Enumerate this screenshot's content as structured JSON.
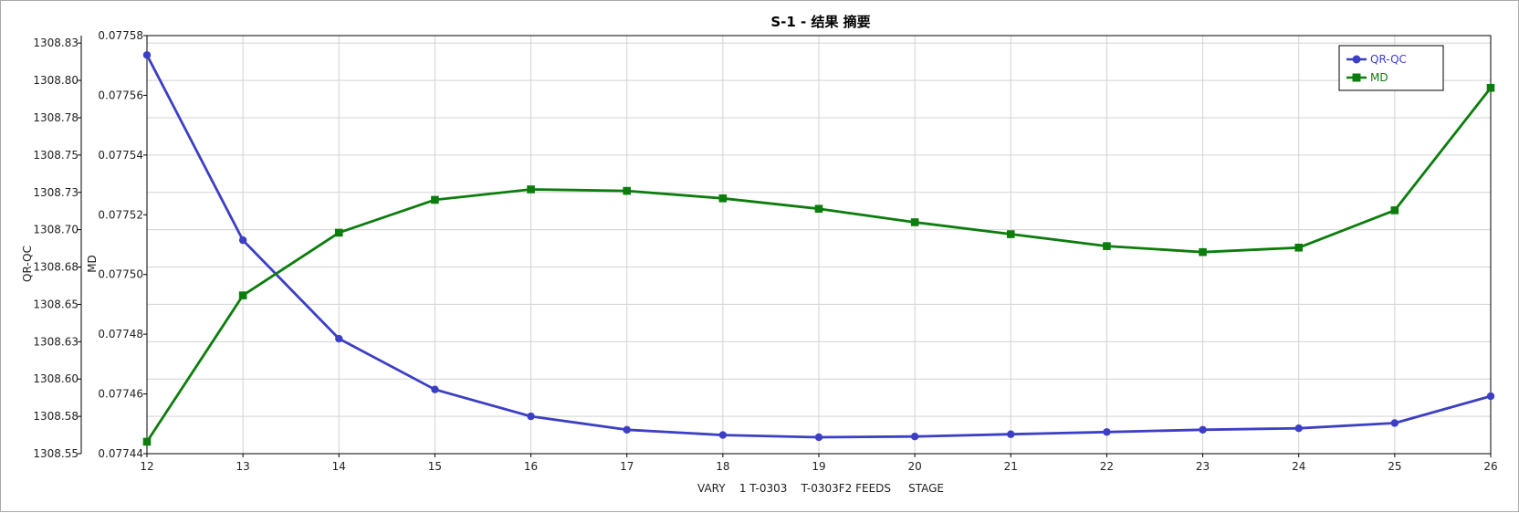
{
  "chart_data": {
    "type": "line",
    "title": "S-1 - 结果 摘要",
    "xlabel": "VARY    1 T-0303    T-0303F2 FEEDS     STAGE",
    "x": [
      12,
      13,
      14,
      15,
      16,
      17,
      18,
      19,
      20,
      21,
      22,
      23,
      24,
      25,
      26
    ],
    "xlim": [
      12,
      26
    ],
    "axes": [
      {
        "name": "left-outer",
        "ylabel": "QR-QC",
        "ylim": [
          1308.55,
          1308.83
        ],
        "tick_values": [
          1308.55,
          1308.575,
          1308.6,
          1308.625,
          1308.65,
          1308.675,
          1308.7,
          1308.725,
          1308.75,
          1308.775,
          1308.8,
          1308.825
        ],
        "tick_labels": [
          "1308.55",
          "1308.58",
          "1308.60",
          "1308.63",
          "1308.65",
          "1308.68",
          "1308.70",
          "1308.73",
          "1308.75",
          "1308.78",
          "1308.80",
          "1308.83"
        ]
      },
      {
        "name": "left-inner",
        "ylabel": "MD",
        "ylim": [
          0.07744,
          0.07758
        ],
        "tick_values": [
          0.07744,
          0.07746,
          0.07748,
          0.0775,
          0.07752,
          0.07754,
          0.07756,
          0.07758
        ],
        "tick_labels": [
          "0.07744",
          "0.07746",
          "0.07748",
          "0.07750",
          "0.07752",
          "0.07754",
          "0.07756",
          "0.07758"
        ]
      }
    ],
    "series": [
      {
        "name": "QR-QC",
        "axis": 0,
        "marker": "circle",
        "color": "#3c3fc4",
        "values": [
          1308.817,
          1308.693,
          1308.627,
          1308.593,
          1308.575,
          1308.566,
          1308.5625,
          1308.561,
          1308.5615,
          1308.563,
          1308.5645,
          1308.566,
          1308.567,
          1308.5705,
          1308.5885
        ]
      },
      {
        "name": "MD",
        "axis": 1,
        "marker": "square",
        "color": "#0c7d0c",
        "values": [
          0.077444,
          0.077493,
          0.077514,
          0.077525,
          0.0775285,
          0.077528,
          0.0775255,
          0.077522,
          0.0775175,
          0.0775135,
          0.0775095,
          0.0775075,
          0.077509,
          0.0775215,
          0.0775625
        ]
      }
    ],
    "grid": true,
    "legend_position": "top-right"
  }
}
